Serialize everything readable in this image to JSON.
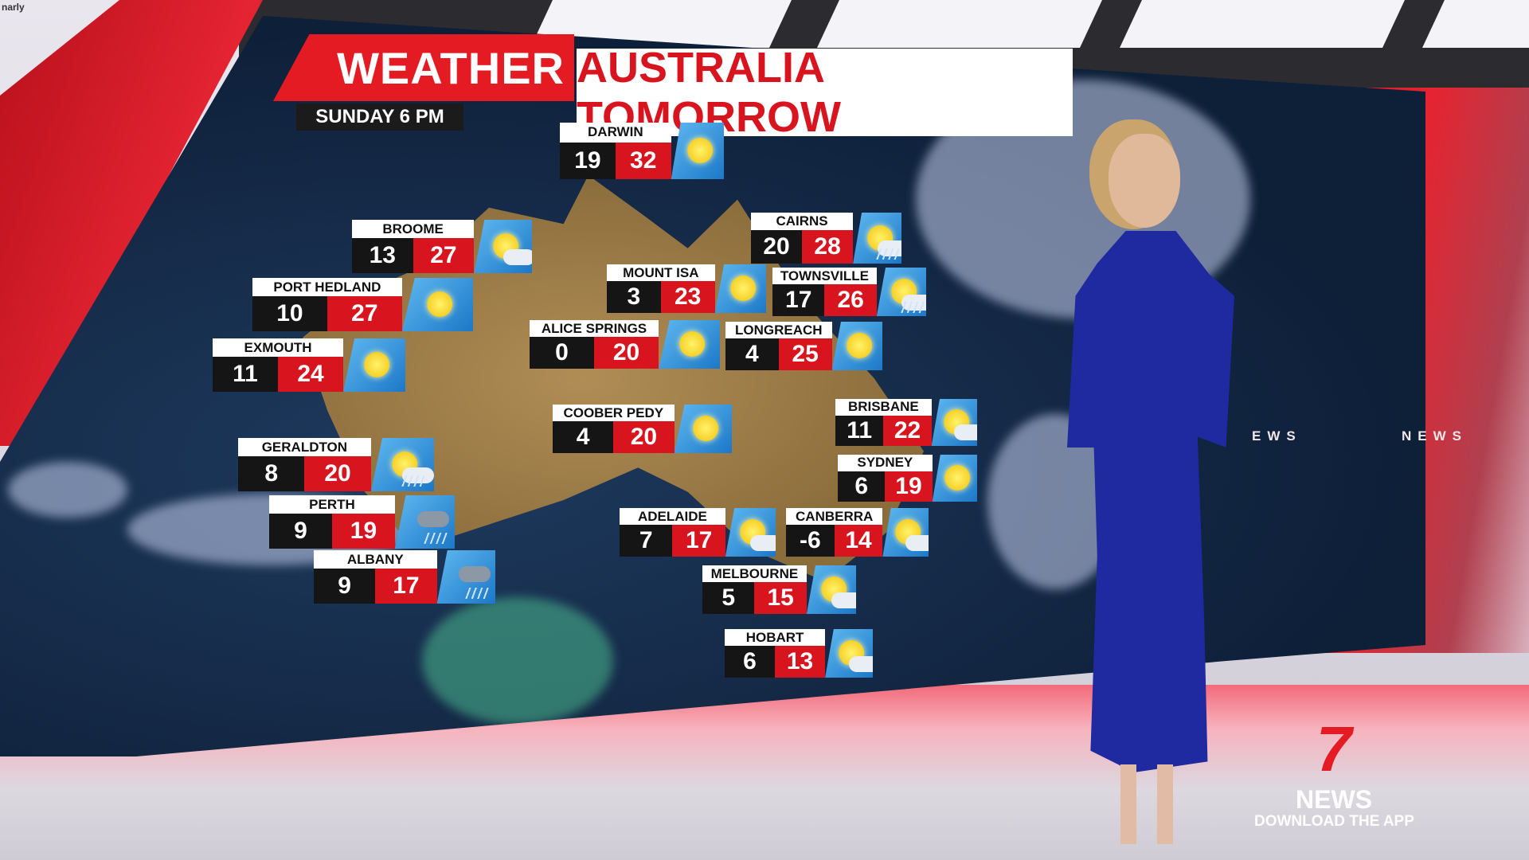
{
  "watermark": "narly",
  "header": {
    "weather_label": "WEATHER",
    "title": "AUSTRALIA TOMORROW",
    "date": "SUNDAY 6 PM"
  },
  "wall_text": [
    "EWS",
    "NEWS"
  ],
  "branding": {
    "logo_number": "7",
    "name": "NEWS",
    "tagline": "DOWNLOAD THE APP",
    "accent_color": "#e41b23"
  },
  "forecast": [
    {
      "city": "Darwin",
      "min": "19",
      "max": "32",
      "icon": "sun"
    },
    {
      "city": "Broome",
      "min": "13",
      "max": "27",
      "icon": "sun-cloud"
    },
    {
      "city": "Cairns",
      "min": "20",
      "max": "28",
      "icon": "sun-cloud-rain"
    },
    {
      "city": "Mount Isa",
      "min": "3",
      "max": "23",
      "icon": "sun"
    },
    {
      "city": "Townsville",
      "min": "17",
      "max": "26",
      "icon": "sun-cloud-rain"
    },
    {
      "city": "Port Hedland",
      "min": "10",
      "max": "27",
      "icon": "sun"
    },
    {
      "city": "Alice Springs",
      "min": "0",
      "max": "20",
      "icon": "sun"
    },
    {
      "city": "Longreach",
      "min": "4",
      "max": "25",
      "icon": "sun"
    },
    {
      "city": "Exmouth",
      "min": "11",
      "max": "24",
      "icon": "sun"
    },
    {
      "city": "Coober Pedy",
      "min": "4",
      "max": "20",
      "icon": "sun"
    },
    {
      "city": "Brisbane",
      "min": "11",
      "max": "22",
      "icon": "sun-cloud"
    },
    {
      "city": "Geraldton",
      "min": "8",
      "max": "20",
      "icon": "sun-cloud-rain"
    },
    {
      "city": "Sydney",
      "min": "6",
      "max": "19",
      "icon": "sun"
    },
    {
      "city": "Perth",
      "min": "9",
      "max": "19",
      "icon": "rain"
    },
    {
      "city": "Adelaide",
      "min": "7",
      "max": "17",
      "icon": "sun-cloud"
    },
    {
      "city": "Canberra",
      "min": "-6",
      "max": "14",
      "icon": "sun-cloud"
    },
    {
      "city": "Albany",
      "min": "9",
      "max": "17",
      "icon": "rain"
    },
    {
      "city": "Melbourne",
      "min": "5",
      "max": "15",
      "icon": "sun-cloud"
    },
    {
      "city": "Hobart",
      "min": "6",
      "max": "13",
      "icon": "sun-cloud"
    }
  ]
}
